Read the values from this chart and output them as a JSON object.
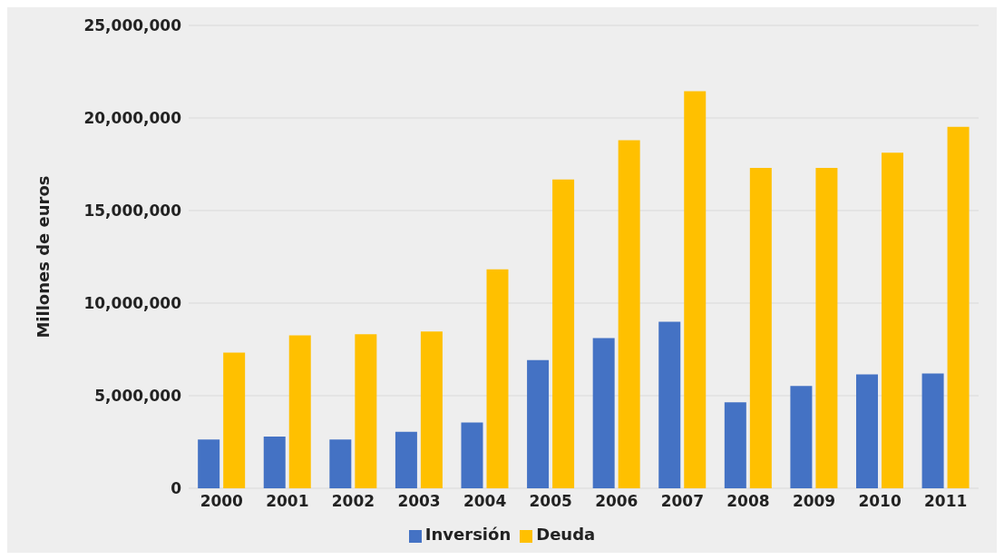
{
  "chart_data": {
    "type": "bar",
    "ylabel": "Millones de euros",
    "categories": [
      "2000",
      "2001",
      "2002",
      "2003",
      "2004",
      "2005",
      "2006",
      "2007",
      "2008",
      "2009",
      "2010",
      "2011"
    ],
    "series": [
      {
        "name": "Inversión",
        "color": "#4472c4",
        "values": [
          2630000,
          2790000,
          2630000,
          3050000,
          3560000,
          6920000,
          8110000,
          8990000,
          4650000,
          5530000,
          6150000,
          6200000
        ]
      },
      {
        "name": "Deuda",
        "color": "#ffc000",
        "values": [
          7330000,
          8260000,
          8320000,
          8470000,
          11830000,
          16680000,
          18800000,
          21440000,
          17300000,
          17300000,
          18130000,
          19520000
        ]
      }
    ],
    "ylim": [
      0,
      25000000
    ],
    "yticks": [
      0,
      {
        "value": 5000000,
        "label": "5,000,000"
      },
      {
        "value": 10000000,
        "label": "10,000,000"
      },
      {
        "value": 15000000,
        "label": "15,000,000"
      },
      {
        "value": 20000000,
        "label": "20,000,000"
      },
      {
        "value": 25000000,
        "label": "25,000,000"
      }
    ],
    "grid": "y",
    "legend": "bottom"
  }
}
